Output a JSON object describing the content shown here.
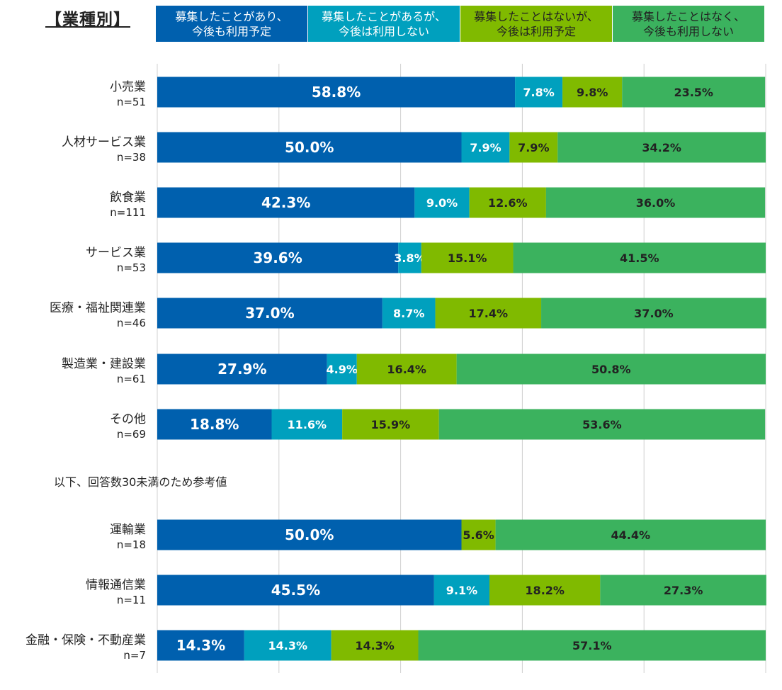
{
  "title": "【業種別】",
  "note": "以下、回答数30未満のため参考値",
  "chart_data": {
    "type": "bar",
    "orientation": "horizontal-stacked-100",
    "xlim": [
      0,
      100
    ],
    "grid": true,
    "series": [
      {
        "name": "募集したことがあり、\n今後も利用予定",
        "color": "#0060AE",
        "text_color": "#FFFFFF"
      },
      {
        "name": "募集したことがあるが、\n今後は利用しない",
        "color": "#00A0BE",
        "text_color": "#FFFFFF"
      },
      {
        "name": "募集したことはないが、\n今後は利用予定",
        "color": "#80BA00",
        "text_color": "#222222"
      },
      {
        "name": "募集したことはなく、\n今後も利用しない",
        "color": "#3BB25E",
        "text_color": "#222222"
      }
    ],
    "categories": [
      {
        "label": "小売業",
        "n": "n=51",
        "values": [
          58.8,
          7.8,
          9.8,
          23.5
        ],
        "labels": [
          "58.8%",
          "7.8%",
          "9.8%",
          "23.5%"
        ]
      },
      {
        "label": "人材サービス業",
        "n": "n=38",
        "values": [
          50.0,
          7.9,
          7.9,
          34.2
        ],
        "labels": [
          "50.0%",
          "7.9%",
          "7.9%",
          "34.2%"
        ]
      },
      {
        "label": "飲食業",
        "n": "n=111",
        "values": [
          42.3,
          9.0,
          12.6,
          36.0
        ],
        "labels": [
          "42.3%",
          "9.0%",
          "12.6%",
          "36.0%"
        ]
      },
      {
        "label": "サービス業",
        "n": "n=53",
        "values": [
          39.6,
          3.8,
          15.1,
          41.5
        ],
        "labels": [
          "39.6%",
          "3.8%",
          "15.1%",
          "41.5%"
        ]
      },
      {
        "label": "医療・福祉関連業",
        "n": "n=46",
        "values": [
          37.0,
          8.7,
          17.4,
          37.0
        ],
        "labels": [
          "37.0%",
          "8.7%",
          "17.4%",
          "37.0%"
        ]
      },
      {
        "label": "製造業・建設業",
        "n": "n=61",
        "values": [
          27.9,
          4.9,
          16.4,
          50.8
        ],
        "labels": [
          "27.9%",
          "4.9%",
          "16.4%",
          "50.8%"
        ]
      },
      {
        "label": "その他",
        "n": "n=69",
        "values": [
          18.8,
          11.6,
          15.9,
          53.6
        ],
        "labels": [
          "18.8%",
          "11.6%",
          "15.9%",
          "53.6%"
        ]
      },
      {
        "label": "運輸業",
        "n": "n=18",
        "values": [
          50.0,
          0,
          5.6,
          44.4
        ],
        "labels": [
          "50.0%",
          "",
          "5.6%",
          "44.4%"
        ]
      },
      {
        "label": "情報通信業",
        "n": "n=11",
        "values": [
          45.5,
          9.1,
          18.2,
          27.3
        ],
        "labels": [
          "45.5%",
          "9.1%",
          "18.2%",
          "27.3%"
        ]
      },
      {
        "label": "金融・保険・不動産業",
        "n": "n=7",
        "values": [
          14.3,
          14.3,
          14.3,
          57.1
        ],
        "labels": [
          "14.3%",
          "14.3%",
          "14.3%",
          "57.1%"
        ]
      }
    ]
  }
}
